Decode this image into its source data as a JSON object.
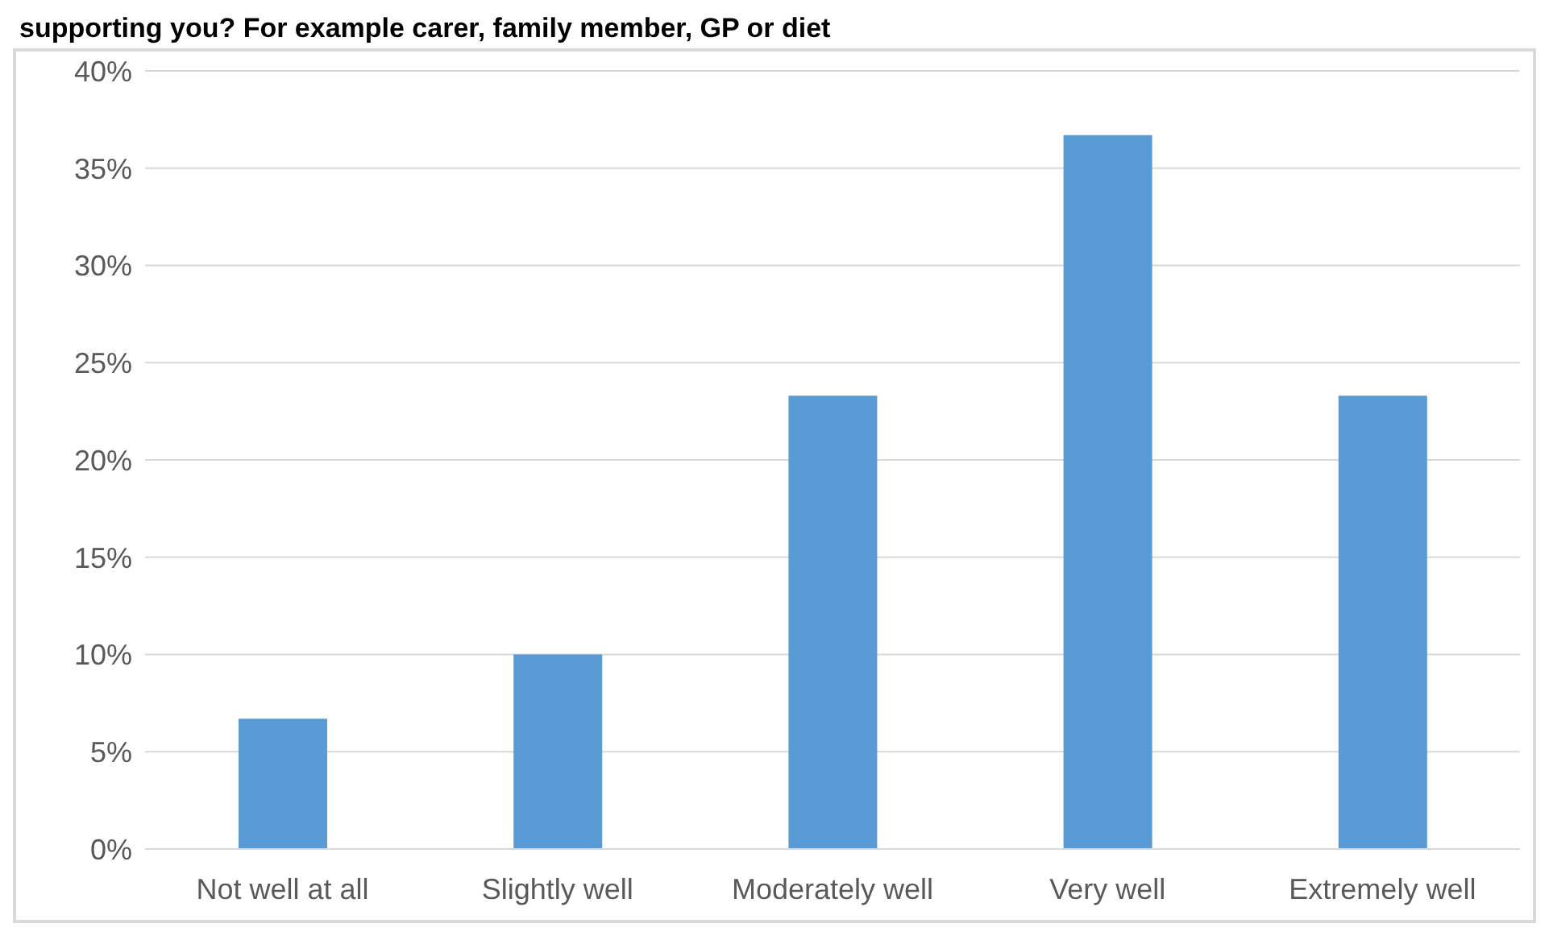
{
  "chart_data": {
    "type": "bar",
    "title": "supporting you? For example carer, family member, GP or diet",
    "categories": [
      "Not well at all",
      "Slightly well",
      "Moderately well",
      "Very well",
      "Extremely well"
    ],
    "values": [
      6.7,
      10,
      23.3,
      36.7,
      23.3
    ],
    "color": "#5b9bd5",
    "ylim": [
      0,
      40
    ],
    "yticks": [
      {
        "value": 0,
        "label": "0%"
      },
      {
        "value": 5,
        "label": "5%"
      },
      {
        "value": 10,
        "label": "10%"
      },
      {
        "value": 15,
        "label": "15%"
      },
      {
        "value": 20,
        "label": "20%"
      },
      {
        "value": 25,
        "label": "25%"
      },
      {
        "value": 30,
        "label": "30%"
      },
      {
        "value": 35,
        "label": "35%"
      },
      {
        "value": 40,
        "label": "40%"
      }
    ],
    "grid": "y"
  }
}
